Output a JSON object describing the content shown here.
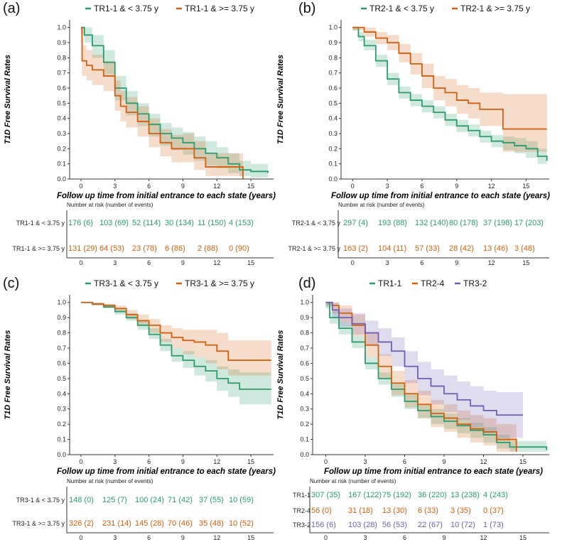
{
  "colors": {
    "green": "#2a9d6f",
    "orange": "#d45f0e",
    "purple": "#6e5fb5",
    "axis": "#333333"
  },
  "chart_data": [
    {
      "type": "line",
      "panel": "(a)",
      "ylabel": "T1D Free Survival Rates",
      "xlabel": "Follow up time from initial entrance to each state (years)",
      "xlim": [
        -1,
        17
      ],
      "ylim": [
        0,
        1.05
      ],
      "xticks": [
        0,
        3,
        6,
        9,
        12,
        15
      ],
      "yticks": [
        0.0,
        0.1,
        0.2,
        0.3,
        0.4,
        0.5,
        0.6,
        0.7,
        0.8,
        0.9,
        1.0
      ],
      "series": [
        {
          "name": "TR1-1 & < 3.75 y",
          "color": "#2a9d6f",
          "x": [
            0,
            0.3,
            1,
            2,
            3,
            4,
            5,
            6,
            7,
            8,
            9,
            10,
            11,
            12,
            13,
            14,
            15,
            16.5
          ],
          "y": [
            1.0,
            0.95,
            0.88,
            0.77,
            0.6,
            0.5,
            0.43,
            0.36,
            0.3,
            0.27,
            0.24,
            0.2,
            0.17,
            0.14,
            0.1,
            0.06,
            0.05,
            0.04
          ],
          "lo": [
            0.96,
            0.9,
            0.8,
            0.69,
            0.52,
            0.42,
            0.35,
            0.28,
            0.22,
            0.19,
            0.16,
            0.12,
            0.09,
            0.07,
            0.04,
            0.02,
            0.01,
            0.01
          ],
          "hi": [
            1.0,
            1.0,
            0.95,
            0.85,
            0.68,
            0.58,
            0.5,
            0.43,
            0.37,
            0.34,
            0.31,
            0.28,
            0.25,
            0.21,
            0.17,
            0.12,
            0.1,
            0.08
          ]
        },
        {
          "name": "TR1-1 & >= 3.75 y",
          "color": "#d45f0e",
          "x": [
            0,
            0.1,
            0.5,
            1,
            2,
            3,
            3.5,
            4,
            5,
            6,
            7,
            8,
            9,
            10,
            11,
            12,
            14.3
          ],
          "y": [
            1.0,
            0.78,
            0.75,
            0.72,
            0.68,
            0.55,
            0.48,
            0.44,
            0.38,
            0.3,
            0.24,
            0.2,
            0.2,
            0.14,
            0.08,
            0.08,
            0.0
          ],
          "lo": [
            0.9,
            0.68,
            0.65,
            0.62,
            0.58,
            0.45,
            0.38,
            0.34,
            0.28,
            0.21,
            0.15,
            0.11,
            0.11,
            0.06,
            0.02,
            0.02,
            0.0
          ],
          "hi": [
            1.0,
            0.88,
            0.85,
            0.82,
            0.78,
            0.65,
            0.58,
            0.54,
            0.48,
            0.4,
            0.33,
            0.29,
            0.3,
            0.25,
            0.17,
            0.17,
            0.15
          ]
        }
      ],
      "risk_table": {
        "title": "Number at risk (number of events)",
        "x": [
          0,
          3,
          6,
          9,
          12,
          15
        ],
        "rows": [
          {
            "label": "TR1-1 & < 3.75 y",
            "color": "#2a9d6f",
            "cells": [
              "176 (6)",
              "103 (69)",
              "52 (114)",
              "30 (134)",
              "11 (150)",
              "4 (153)"
            ]
          },
          {
            "label": "TR1-1 & >= 3.75 y",
            "color": "#d45f0e",
            "cells": [
              "131 (29)",
              "64 (53)",
              "23 (78)",
              "6 (86)",
              "2 (88)",
              "0 (90)"
            ]
          }
        ]
      }
    },
    {
      "type": "line",
      "panel": "(b)",
      "ylabel": "T1D Free Survival Rates",
      "xlabel": "Follow up time from initial entrance to each state (years)",
      "xlim": [
        -1,
        17
      ],
      "ylim": [
        0,
        1.05
      ],
      "xticks": [
        0,
        3,
        6,
        9,
        12,
        15
      ],
      "yticks": [
        0.0,
        0.1,
        0.2,
        0.3,
        0.4,
        0.5,
        0.6,
        0.7,
        0.8,
        0.9,
        1.0
      ],
      "series": [
        {
          "name": "TR2-1 & < 3.75 y",
          "color": "#2a9d6f",
          "x": [
            0,
            0.5,
            1,
            2,
            3,
            4,
            5,
            6,
            7,
            8,
            9,
            10,
            11,
            12,
            13,
            14,
            15,
            16,
            16.8
          ],
          "y": [
            1.0,
            0.94,
            0.88,
            0.78,
            0.66,
            0.57,
            0.52,
            0.48,
            0.44,
            0.39,
            0.35,
            0.32,
            0.28,
            0.25,
            0.24,
            0.22,
            0.2,
            0.15,
            0.12
          ],
          "lo": [
            0.98,
            0.91,
            0.85,
            0.74,
            0.62,
            0.53,
            0.48,
            0.44,
            0.4,
            0.35,
            0.31,
            0.28,
            0.24,
            0.21,
            0.19,
            0.17,
            0.14,
            0.1,
            0.08
          ],
          "hi": [
            1.0,
            0.97,
            0.92,
            0.82,
            0.7,
            0.61,
            0.56,
            0.52,
            0.48,
            0.43,
            0.39,
            0.36,
            0.32,
            0.29,
            0.28,
            0.27,
            0.25,
            0.2,
            0.17
          ]
        },
        {
          "name": "TR2-1 & >= 3.75 y",
          "color": "#d45f0e",
          "x": [
            0,
            1,
            2,
            3,
            4,
            5,
            6,
            7,
            8,
            9,
            10,
            11,
            12,
            13,
            16.8
          ],
          "y": [
            1.0,
            0.97,
            0.93,
            0.9,
            0.83,
            0.76,
            0.68,
            0.6,
            0.57,
            0.52,
            0.5,
            0.46,
            0.46,
            0.33,
            0.33
          ],
          "lo": [
            0.98,
            0.94,
            0.89,
            0.85,
            0.77,
            0.69,
            0.6,
            0.52,
            0.48,
            0.43,
            0.4,
            0.35,
            0.35,
            0.18,
            0.18
          ],
          "hi": [
            1.0,
            1.0,
            0.97,
            0.95,
            0.89,
            0.83,
            0.76,
            0.68,
            0.66,
            0.62,
            0.6,
            0.57,
            0.57,
            0.56,
            0.56
          ]
        }
      ],
      "risk_table": {
        "title": "Number at risk (number of events)",
        "x": [
          0,
          3,
          6,
          9,
          12,
          15
        ],
        "rows": [
          {
            "label": "TR2-1 & < 3.75 y",
            "color": "#2a9d6f",
            "cells": [
              "297 (4)",
              "193 (88)",
              "132 (140)",
              "80 (178)",
              "37 (198)",
              "17 (203)"
            ]
          },
          {
            "label": "TR2-1 & >= 3.75 y",
            "color": "#d45f0e",
            "cells": [
              "163 (2)",
              "104 (11)",
              "57 (33)",
              "28 (42)",
              "13 (46)",
              "3 (48)"
            ]
          }
        ]
      }
    },
    {
      "type": "line",
      "panel": "(c)",
      "ylabel": "T1D Free Survival Rates",
      "xlabel": "Follow up time from initial entrance to each state (years)",
      "xlim": [
        -1,
        17
      ],
      "ylim": [
        0,
        1.05
      ],
      "xticks": [
        0,
        3,
        6,
        9,
        12,
        15
      ],
      "yticks": [
        0.0,
        0.1,
        0.2,
        0.3,
        0.4,
        0.5,
        0.6,
        0.7,
        0.8,
        0.9,
        1.0
      ],
      "series": [
        {
          "name": "TR3-1 & < 3.75 y",
          "color": "#2a9d6f",
          "x": [
            0,
            1,
            2,
            3,
            4,
            5,
            6,
            7,
            8,
            9,
            10,
            11,
            12,
            13,
            14,
            16.8
          ],
          "y": [
            1.0,
            0.99,
            0.97,
            0.94,
            0.9,
            0.85,
            0.79,
            0.72,
            0.65,
            0.62,
            0.58,
            0.55,
            0.5,
            0.47,
            0.43,
            0.43
          ],
          "lo": [
            1.0,
            0.98,
            0.96,
            0.92,
            0.88,
            0.82,
            0.76,
            0.68,
            0.61,
            0.57,
            0.52,
            0.48,
            0.42,
            0.38,
            0.33,
            0.33
          ],
          "hi": [
            1.0,
            1.0,
            0.99,
            0.96,
            0.93,
            0.88,
            0.83,
            0.76,
            0.7,
            0.68,
            0.64,
            0.62,
            0.58,
            0.56,
            0.54,
            0.54
          ]
        },
        {
          "name": "TR3-1 & >= 3.75 y",
          "color": "#d45f0e",
          "x": [
            0,
            1,
            2,
            3,
            4,
            5,
            6,
            7,
            8,
            9,
            10,
            11,
            12,
            13,
            16.8
          ],
          "y": [
            1.0,
            0.99,
            0.98,
            0.96,
            0.92,
            0.88,
            0.85,
            0.8,
            0.77,
            0.75,
            0.74,
            0.72,
            0.68,
            0.62,
            0.62
          ],
          "lo": [
            1.0,
            0.98,
            0.97,
            0.94,
            0.89,
            0.85,
            0.8,
            0.74,
            0.7,
            0.66,
            0.64,
            0.6,
            0.56,
            0.52,
            0.52
          ],
          "hi": [
            1.0,
            1.0,
            0.99,
            0.98,
            0.95,
            0.92,
            0.89,
            0.85,
            0.83,
            0.82,
            0.82,
            0.82,
            0.8,
            0.75,
            0.75
          ]
        }
      ],
      "risk_table": {
        "title": "Number at risk (number of events)",
        "x": [
          0,
          3,
          6,
          9,
          12,
          15
        ],
        "rows": [
          {
            "label": "TR3-1 & < 3.75 y",
            "color": "#2a9d6f",
            "cells": [
              "148 (0)",
              "125 (7)",
              "100 (24)",
              "71 (42)",
              "37 (55)",
              "10 (59)"
            ]
          },
          {
            "label": "TR3-1 & >= 3.75 y",
            "color": "#d45f0e",
            "cells": [
              "326 (2)",
              "231 (14)",
              "145 (28)",
              "70 (46)",
              "35 (48)",
              "10 (52)"
            ]
          }
        ]
      }
    },
    {
      "type": "line",
      "panel": "(d)",
      "ylabel": "T1D Free Survival Rates",
      "xlabel": "Follow up time from initial entrance to each state (years)",
      "xlim": [
        -1,
        17
      ],
      "ylim": [
        0,
        1.05
      ],
      "xticks": [
        0,
        3,
        6,
        9,
        12,
        15
      ],
      "yticks": [
        0.0,
        0.1,
        0.2,
        0.3,
        0.4,
        0.5,
        0.6,
        0.7,
        0.8,
        0.9,
        1.0
      ],
      "series": [
        {
          "name": "TR1-1",
          "color": "#2a9d6f",
          "x": [
            0,
            0.3,
            1,
            2,
            3,
            4,
            5,
            6,
            7,
            8,
            9,
            10,
            11,
            12,
            13,
            14,
            15,
            16.8
          ],
          "y": [
            1.0,
            0.9,
            0.83,
            0.74,
            0.6,
            0.5,
            0.43,
            0.35,
            0.29,
            0.25,
            0.22,
            0.19,
            0.16,
            0.13,
            0.08,
            0.05,
            0.05,
            0.03
          ],
          "lo": [
            0.96,
            0.86,
            0.79,
            0.7,
            0.56,
            0.46,
            0.38,
            0.3,
            0.24,
            0.2,
            0.17,
            0.14,
            0.11,
            0.08,
            0.04,
            0.02,
            0.02,
            0.01
          ],
          "hi": [
            1.0,
            0.94,
            0.87,
            0.78,
            0.64,
            0.54,
            0.47,
            0.4,
            0.33,
            0.3,
            0.27,
            0.24,
            0.21,
            0.18,
            0.13,
            0.09,
            0.09,
            0.06
          ]
        },
        {
          "name": "TR2-4",
          "color": "#d45f0e",
          "x": [
            0,
            0.5,
            1,
            2,
            3,
            4,
            5,
            6,
            7,
            8,
            9,
            10,
            11,
            12,
            13,
            14.5
          ],
          "y": [
            1.0,
            0.98,
            0.93,
            0.85,
            0.72,
            0.58,
            0.47,
            0.4,
            0.33,
            0.27,
            0.24,
            0.2,
            0.17,
            0.15,
            0.1,
            0.02
          ],
          "lo": [
            0.98,
            0.93,
            0.87,
            0.78,
            0.64,
            0.5,
            0.39,
            0.31,
            0.24,
            0.18,
            0.15,
            0.11,
            0.08,
            0.06,
            0.02,
            0.0
          ],
          "hi": [
            1.0,
            1.0,
            0.98,
            0.92,
            0.8,
            0.66,
            0.55,
            0.49,
            0.42,
            0.36,
            0.33,
            0.29,
            0.26,
            0.24,
            0.2,
            0.12
          ]
        },
        {
          "name": "TR3-2",
          "color": "#6e5fb5",
          "x": [
            0,
            0.5,
            1,
            2,
            3,
            4,
            5,
            6,
            7,
            8,
            9,
            10,
            11,
            12,
            13,
            15
          ],
          "y": [
            1.0,
            0.95,
            0.9,
            0.86,
            0.8,
            0.74,
            0.68,
            0.58,
            0.5,
            0.45,
            0.4,
            0.36,
            0.32,
            0.29,
            0.26,
            0.26
          ],
          "lo": [
            0.97,
            0.9,
            0.84,
            0.79,
            0.72,
            0.65,
            0.58,
            0.47,
            0.39,
            0.33,
            0.28,
            0.23,
            0.18,
            0.14,
            0.11,
            0.11
          ],
          "hi": [
            1.0,
            1.0,
            0.96,
            0.93,
            0.88,
            0.83,
            0.77,
            0.68,
            0.61,
            0.56,
            0.52,
            0.48,
            0.45,
            0.42,
            0.41,
            0.41
          ]
        }
      ],
      "risk_table": {
        "title": "Number at risk (number of events)",
        "x": [
          0,
          3,
          6,
          9,
          12,
          15
        ],
        "rows": [
          {
            "label": "TR1-1",
            "color": "#2a9d6f",
            "cells": [
              "307 (35)",
              "167 (122)",
              "75 (192)",
              "36 (220)",
              "13 (238)",
              "4 (243)"
            ]
          },
          {
            "label": "TR2-4",
            "color": "#d45f0e",
            "cells": [
              "56 (0)",
              "31 (18)",
              "13 (30)",
              "6 (33)",
              "3 (35)",
              "0 (37)"
            ]
          },
          {
            "label": "TR3-2",
            "color": "#6e5fb5",
            "cells": [
              "156 (6)",
              "103 (28)",
              "56 (53)",
              "22 (67)",
              "10 (72)",
              "1 (73)"
            ]
          }
        ]
      }
    }
  ]
}
